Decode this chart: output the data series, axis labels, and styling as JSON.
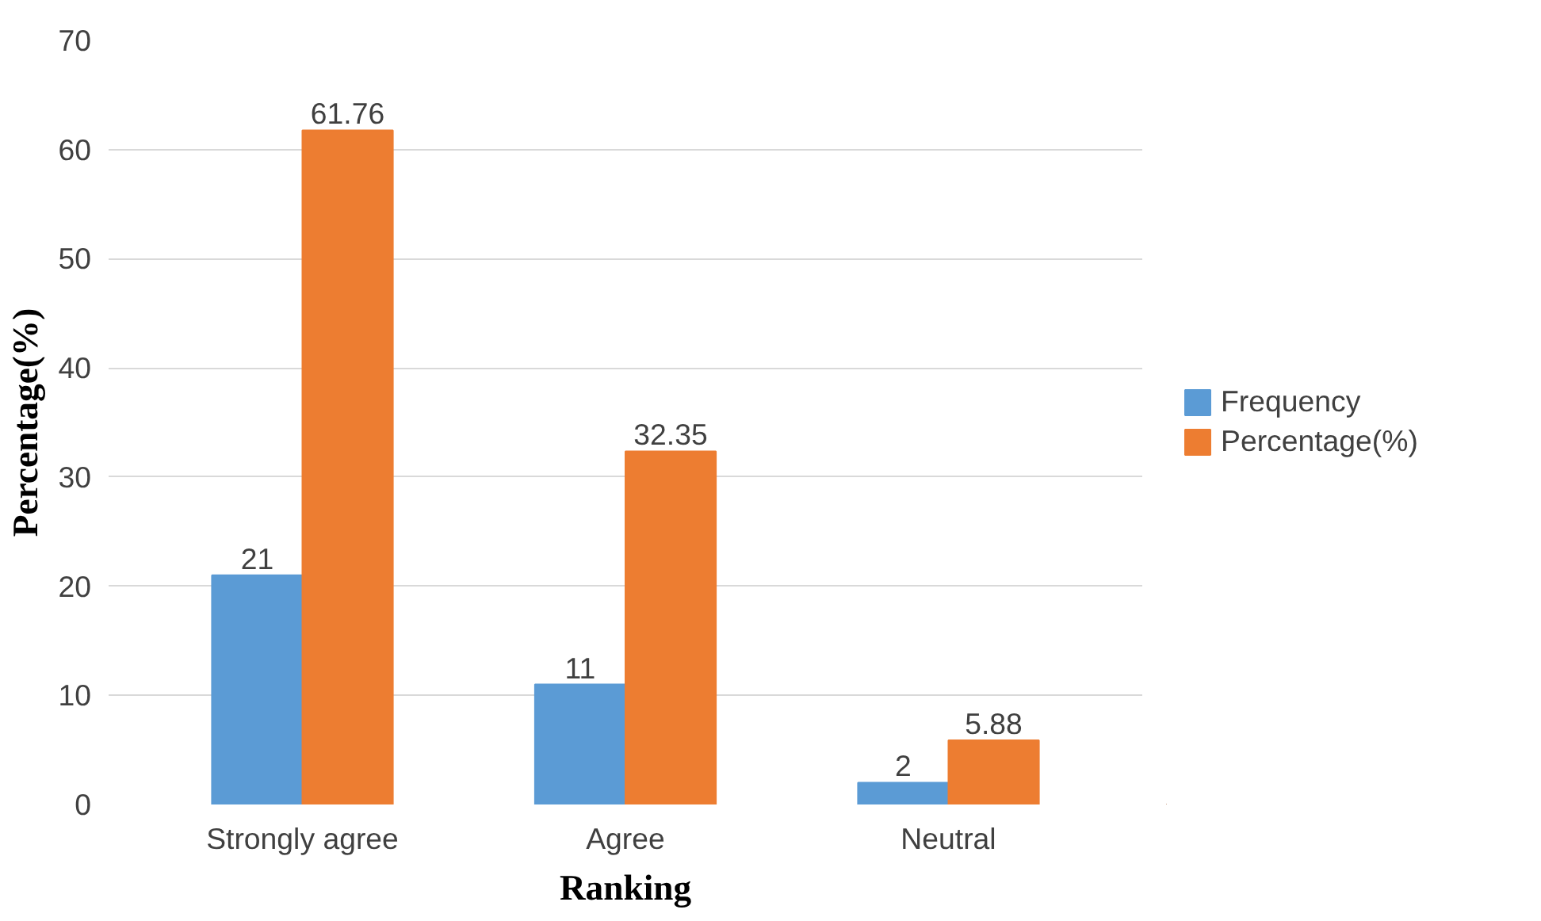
{
  "chart_data": {
    "type": "bar",
    "xlabel": "Ranking",
    "ylabel": "Percentage(%)",
    "categories": [
      "Strongly agree",
      "Agree",
      "Neutral"
    ],
    "series": [
      {
        "name": "Frequency",
        "color": "#5b9bd5",
        "values": [
          21,
          11,
          2
        ]
      },
      {
        "name": "Percentage(%)",
        "color": "#ed7d31",
        "values": [
          61.76,
          32.35,
          5.88
        ]
      }
    ],
    "ylim": [
      0,
      70
    ],
    "yticks": [
      0,
      10,
      20,
      30,
      40,
      50,
      60,
      70
    ],
    "grid": "y",
    "legend": "right",
    "data_labels": true
  }
}
